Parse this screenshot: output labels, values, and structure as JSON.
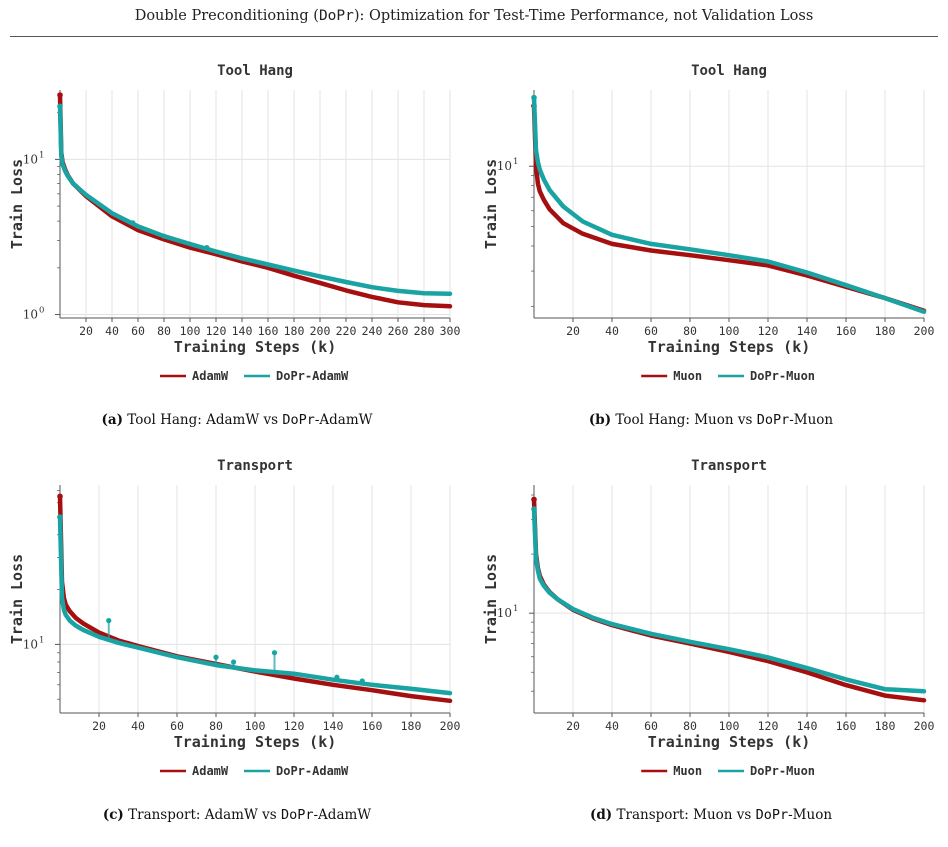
{
  "header": {
    "pre": "Double Preconditioning (",
    "mono": "DoPr",
    "post": "): Optimization for Test-Time Performance, not Validation Loss"
  },
  "colors": {
    "baseline": "#a50f0f",
    "dopr": "#1aa3a3",
    "grid": "#e3e3e3"
  },
  "panels": [
    {
      "caption": {
        "tag": "(a)",
        "pre": "Tool Hang: AdamW vs ",
        "mono": "DoPr",
        "post": "-AdamW"
      },
      "chart_data": {
        "type": "line",
        "title": "Tool Hang",
        "xlabel": "Training Steps (k)",
        "ylabel": "Train Loss",
        "yscale": "log",
        "xlim": [
          0,
          300
        ],
        "ylim": [
          0.95,
          28
        ],
        "xticks": [
          20,
          40,
          60,
          80,
          100,
          120,
          140,
          160,
          180,
          200,
          220,
          240,
          260,
          280,
          300
        ],
        "yticks": [
          {
            "v": 1,
            "t": "10"
          },
          {
            "v": 10,
            "t": "10"
          }
        ],
        "ytick_exp": [
          "0",
          "1"
        ],
        "legend_position": "bottom",
        "series": [
          {
            "name": "AdamW",
            "role": "baseline",
            "x": [
              0,
              1,
              2,
              4,
              6,
              10,
              20,
              40,
              60,
              80,
              100,
              120,
              140,
              160,
              180,
              200,
              220,
              240,
              260,
              280,
              300
            ],
            "y": [
              26,
              11,
              9.6,
              8.6,
              7.9,
              7.0,
              5.8,
              4.3,
              3.5,
              3.05,
              2.7,
              2.45,
              2.2,
              2.0,
              1.78,
              1.6,
              1.43,
              1.3,
              1.2,
              1.15,
              1.13
            ],
            "spikes": []
          },
          {
            "name": "DoPr-AdamW",
            "role": "dopr",
            "x": [
              0,
              1,
              2,
              4,
              6,
              10,
              20,
              40,
              60,
              80,
              100,
              120,
              140,
              160,
              180,
              200,
              220,
              240,
              260,
              280,
              300
            ],
            "y": [
              22,
              10.5,
              9.3,
              8.4,
              7.8,
              7.0,
              5.9,
              4.5,
              3.7,
              3.2,
              2.85,
              2.55,
              2.3,
              2.1,
              1.92,
              1.76,
              1.62,
              1.5,
              1.42,
              1.37,
              1.36
            ],
            "spikes": [
              {
                "x": 56,
                "y": 3.9
              },
              {
                "x": 80,
                "y": 3.2
              },
              {
                "x": 113,
                "y": 2.7
              }
            ]
          }
        ]
      }
    },
    {
      "caption": {
        "tag": "(b)",
        "pre": "Tool Hang: Muon vs ",
        "mono": "DoPr",
        "post": "-Muon"
      },
      "chart_data": {
        "type": "line",
        "title": "Tool Hang",
        "xlabel": "Training Steps (k)",
        "ylabel": "Train Loss",
        "yscale": "log",
        "xlim": [
          0,
          200
        ],
        "ylim": [
          1.75,
          24
        ],
        "xticks": [
          20,
          40,
          60,
          80,
          100,
          120,
          140,
          160,
          180,
          200
        ],
        "yticks": [
          {
            "v": 10,
            "t": "10"
          }
        ],
        "ytick_exp": [
          "1"
        ],
        "legend_position": "bottom",
        "series": [
          {
            "name": "Muon",
            "role": "baseline",
            "x": [
              0,
              1,
              2,
              3,
              5,
              8,
              15,
              25,
              40,
              60,
              80,
              100,
              120,
              140,
              160,
              180,
              200
            ],
            "y": [
              20,
              10,
              8.2,
              7.5,
              6.8,
              6.1,
              5.2,
              4.6,
              4.1,
              3.8,
              3.6,
              3.4,
              3.2,
              2.85,
              2.5,
              2.2,
              1.9
            ],
            "spikes": []
          },
          {
            "name": "DoPr-Muon",
            "role": "dopr",
            "x": [
              0,
              1,
              2,
              3,
              5,
              8,
              15,
              25,
              40,
              60,
              80,
              100,
              120,
              140,
              160,
              180,
              200
            ],
            "y": [
              22,
              12,
              10.5,
              9.6,
              8.6,
              7.6,
              6.3,
              5.3,
              4.55,
              4.1,
              3.85,
              3.6,
              3.35,
              2.95,
              2.55,
              2.2,
              1.88
            ],
            "spikes": []
          }
        ]
      }
    },
    {
      "caption": {
        "tag": "(c)",
        "pre": "Transport: AdamW vs ",
        "mono": "DoPr",
        "post": "-AdamW"
      },
      "chart_data": {
        "type": "line",
        "title": "Transport",
        "xlabel": "Training Steps (k)",
        "ylabel": "Train Loss",
        "yscale": "log",
        "xlim": [
          0,
          200
        ],
        "ylim": [
          4.2,
          75
        ],
        "xticks": [
          20,
          40,
          60,
          80,
          100,
          120,
          140,
          160,
          180,
          200
        ],
        "yticks": [
          {
            "v": 10,
            "t": "10"
          }
        ],
        "ytick_exp": [
          "1"
        ],
        "legend_position": "bottom",
        "series": [
          {
            "name": "AdamW",
            "role": "baseline",
            "x": [
              0,
              1,
              2,
              3,
              5,
              8,
              12,
              20,
              30,
              40,
              60,
              80,
              100,
              120,
              140,
              160,
              180,
              200
            ],
            "y": [
              65,
              22,
              18,
              16.5,
              15.2,
              14,
              13,
              11.6,
              10.5,
              9.8,
              8.6,
              7.8,
              7.1,
              6.5,
              6.0,
              5.6,
              5.2,
              4.9
            ],
            "spikes": []
          },
          {
            "name": "DoPr-AdamW",
            "role": "dopr",
            "x": [
              0,
              1,
              2,
              3,
              5,
              8,
              12,
              20,
              30,
              40,
              60,
              80,
              100,
              120,
              140,
              160,
              180,
              200
            ],
            "y": [
              50,
              18,
              15.5,
              14.5,
              13.5,
              12.7,
              12,
              11,
              10.2,
              9.6,
              8.5,
              7.7,
              7.2,
              6.9,
              6.4,
              6.0,
              5.7,
              5.4
            ],
            "spikes": [
              {
                "x": 25,
                "y": 13.5
              },
              {
                "x": 80,
                "y": 8.5
              },
              {
                "x": 89,
                "y": 8.0
              },
              {
                "x": 110,
                "y": 9.0
              },
              {
                "x": 142,
                "y": 6.6
              },
              {
                "x": 155,
                "y": 6.3
              }
            ]
          }
        ]
      }
    },
    {
      "caption": {
        "tag": "(d)",
        "pre": "Transport: Muon vs ",
        "mono": "DoPr",
        "post": "-Muon"
      },
      "chart_data": {
        "type": "line",
        "title": "Transport",
        "xlabel": "Training Steps (k)",
        "ylabel": "Train Loss",
        "yscale": "log",
        "xlim": [
          0,
          200
        ],
        "ylim": [
          3.1,
          45
        ],
        "xticks": [
          20,
          40,
          60,
          80,
          100,
          120,
          140,
          160,
          180,
          200
        ],
        "yticks": [
          {
            "v": 10,
            "t": "10"
          }
        ],
        "ytick_exp": [
          "1"
        ],
        "legend_position": "bottom",
        "series": [
          {
            "name": "Muon",
            "role": "baseline",
            "x": [
              0,
              1,
              2,
              3,
              5,
              8,
              12,
              20,
              30,
              40,
              60,
              80,
              100,
              120,
              140,
              160,
              180,
              200
            ],
            "y": [
              38,
              20,
              17,
              15.5,
              14,
              12.8,
              11.8,
              10.4,
              9.4,
              8.7,
              7.7,
              7.0,
              6.35,
              5.7,
              5.0,
              4.3,
              3.8,
              3.6
            ],
            "spikes": []
          },
          {
            "name": "DoPr-Muon",
            "role": "dopr",
            "x": [
              0,
              1,
              2,
              3,
              5,
              8,
              12,
              20,
              30,
              40,
              60,
              80,
              100,
              120,
              140,
              160,
              180,
              200
            ],
            "y": [
              34,
              19,
              16.5,
              15,
              13.8,
              12.7,
              11.8,
              10.5,
              9.5,
              8.8,
              7.85,
              7.15,
              6.55,
              5.95,
              5.25,
              4.6,
              4.1,
              4.0
            ],
            "spikes": []
          }
        ]
      }
    }
  ]
}
